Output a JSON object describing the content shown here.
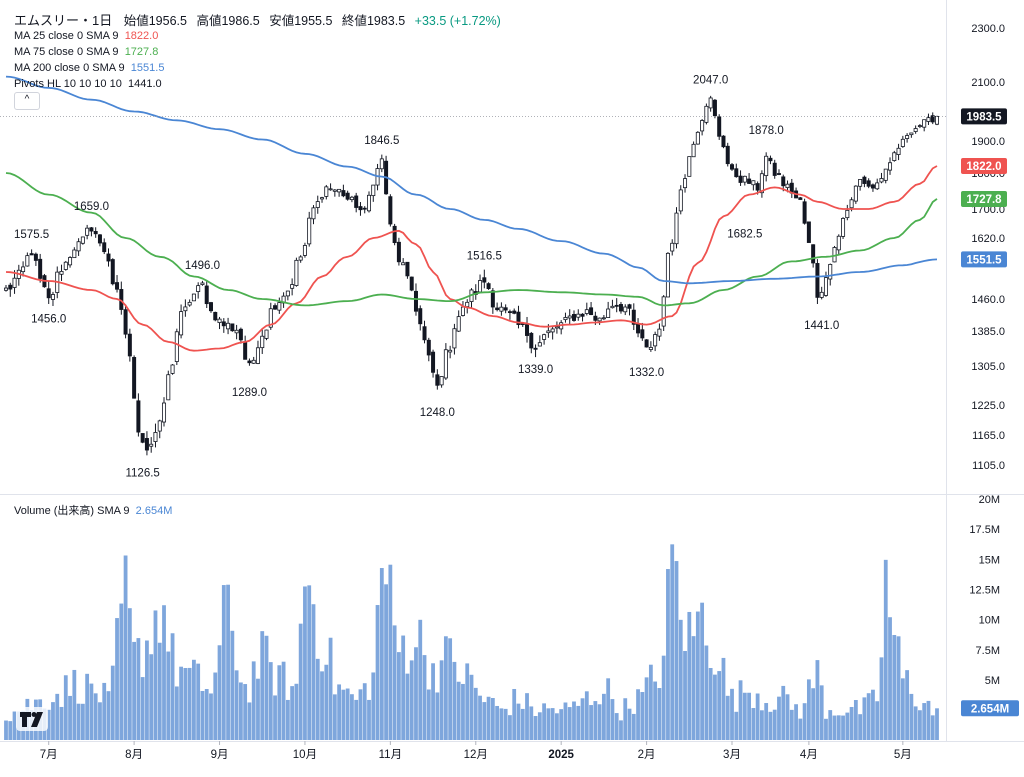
{
  "header": {
    "symbol": "エムスリー・1日",
    "open_label": "始値",
    "open": "1956.5",
    "high_label": "高値",
    "high": "1986.5",
    "low_label": "安値",
    "low": "1955.5",
    "close_label": "終値",
    "close": "1983.5",
    "change": "+33.5 (+1.72%)",
    "collapse_glyph": "^"
  },
  "indicators": [
    {
      "label": "MA 25 close 0 SMA 9",
      "value": "1822.0",
      "color": "#ef5350"
    },
    {
      "label": "MA 75 close 0 SMA 9",
      "value": "1727.8",
      "color": "#4caf50"
    },
    {
      "label": "MA 200 close 0 SMA 9",
      "value": "1551.5",
      "color": "#4a86d4"
    },
    {
      "label": "Pivots HL 10 10 10 10",
      "value": "1441.0",
      "color": "#131722"
    }
  ],
  "volume_legend": {
    "label": "Volume (出来高) SMA 9",
    "value": "2.654M",
    "color": "#4a86d4"
  },
  "chart_data": {
    "type": "candlestick",
    "price_axis": {
      "ticks": [
        2300,
        2100,
        1900,
        1800,
        1700,
        1620,
        1540,
        1460,
        1385,
        1305,
        1225,
        1165,
        1105
      ],
      "tick_labels": [
        "2300.0",
        "2100.0",
        "1900.0",
        "1800.0",
        "1700.0",
        "1620.0",
        "1540.0",
        "1460.0",
        "1385.0",
        "1305.0",
        "1225.0",
        "1165.0",
        "1105.0"
      ]
    },
    "volume_axis": {
      "ticks": [
        20,
        17.5,
        15,
        12.5,
        10,
        7.5,
        5
      ],
      "tick_labels": [
        "20M",
        "17.5M",
        "15M",
        "12.5M",
        "10M",
        "7.5M",
        "5M"
      ]
    },
    "time_axis": {
      "labels": [
        "7月",
        "8月",
        "9月",
        "10月",
        "11月",
        "12月",
        "2025",
        "2月",
        "3月",
        "4月",
        "5月"
      ],
      "label_index": [
        10,
        30,
        50,
        70,
        90,
        110,
        130,
        150,
        170,
        188,
        210
      ]
    },
    "price_tags": [
      {
        "value": 1983.5,
        "text": "1983.5",
        "bg": "#131722"
      },
      {
        "value": 1822.0,
        "text": "1822.0",
        "bg": "#ef5350"
      },
      {
        "value": 1727.8,
        "text": "1727.8",
        "bg": "#4caf50"
      },
      {
        "value": 1551.5,
        "text": "1551.5",
        "bg": "#4a86d4"
      }
    ],
    "volume_tag": {
      "value": 2.654,
      "text": "2.654M",
      "bg": "#4a86d4"
    },
    "pivot_labels": [
      {
        "text": "1575.5",
        "i": 6,
        "price": 1575.5,
        "pos": "above"
      },
      {
        "text": "1659.0",
        "i": 20,
        "price": 1659.0,
        "pos": "above"
      },
      {
        "text": "1456.0",
        "i": 10,
        "price": 1456.0,
        "pos": "below"
      },
      {
        "text": "1126.5",
        "i": 32,
        "price": 1126.5,
        "pos": "below"
      },
      {
        "text": "1496.0",
        "i": 46,
        "price": 1496.0,
        "pos": "above"
      },
      {
        "text": "1289.0",
        "i": 57,
        "price": 1289.0,
        "pos": "below"
      },
      {
        "text": "1846.5",
        "i": 88,
        "price": 1846.5,
        "pos": "above"
      },
      {
        "text": "1248.0",
        "i": 101,
        "price": 1248.0,
        "pos": "below"
      },
      {
        "text": "1516.5",
        "i": 112,
        "price": 1516.5,
        "pos": "above"
      },
      {
        "text": "1339.0",
        "i": 124,
        "price": 1339.0,
        "pos": "below"
      },
      {
        "text": "1332.0",
        "i": 150,
        "price": 1332.0,
        "pos": "below"
      },
      {
        "text": "2047.0",
        "i": 165,
        "price": 2047.0,
        "pos": "above"
      },
      {
        "text": "1878.0",
        "i": 178,
        "price": 1878.0,
        "pos": "above"
      },
      {
        "text": "1682.5",
        "i": 173,
        "price": 1682.5,
        "pos": "below"
      },
      {
        "text": "1441.0",
        "i": 191,
        "price": 1441.0,
        "pos": "below"
      }
    ],
    "anchors": [
      [
        0,
        1480
      ],
      [
        3,
        1510
      ],
      [
        6,
        1575
      ],
      [
        8,
        1500
      ],
      [
        10,
        1456
      ],
      [
        13,
        1530
      ],
      [
        17,
        1600
      ],
      [
        20,
        1650
      ],
      [
        23,
        1580
      ],
      [
        26,
        1470
      ],
      [
        28,
        1380
      ],
      [
        31,
        1180
      ],
      [
        33,
        1140
      ],
      [
        36,
        1180
      ],
      [
        38,
        1280
      ],
      [
        41,
        1420
      ],
      [
        44,
        1470
      ],
      [
        46,
        1490
      ],
      [
        48,
        1430
      ],
      [
        51,
        1400
      ],
      [
        54,
        1390
      ],
      [
        57,
        1300
      ],
      [
        60,
        1380
      ],
      [
        63,
        1450
      ],
      [
        66,
        1480
      ],
      [
        69,
        1560
      ],
      [
        72,
        1700
      ],
      [
        75,
        1760
      ],
      [
        78,
        1750
      ],
      [
        81,
        1720
      ],
      [
        84,
        1690
      ],
      [
        86,
        1780
      ],
      [
        88,
        1840
      ],
      [
        90,
        1650
      ],
      [
        92,
        1550
      ],
      [
        95,
        1480
      ],
      [
        97,
        1400
      ],
      [
        99,
        1320
      ],
      [
        101,
        1260
      ],
      [
        103,
        1330
      ],
      [
        106,
        1420
      ],
      [
        109,
        1470
      ],
      [
        112,
        1500
      ],
      [
        115,
        1440
      ],
      [
        118,
        1420
      ],
      [
        121,
        1390
      ],
      [
        124,
        1350
      ],
      [
        127,
        1380
      ],
      [
        130,
        1400
      ],
      [
        133,
        1420
      ],
      [
        136,
        1430
      ],
      [
        139,
        1410
      ],
      [
        142,
        1450
      ],
      [
        145,
        1440
      ],
      [
        148,
        1380
      ],
      [
        150,
        1340
      ],
      [
        153,
        1390
      ],
      [
        155,
        1560
      ],
      [
        158,
        1750
      ],
      [
        161,
        1900
      ],
      [
        163,
        1980
      ],
      [
        165,
        2040
      ],
      [
        167,
        1920
      ],
      [
        170,
        1800
      ],
      [
        173,
        1780
      ],
      [
        176,
        1760
      ],
      [
        178,
        1850
      ],
      [
        180,
        1800
      ],
      [
        183,
        1760
      ],
      [
        186,
        1720
      ],
      [
        188,
        1600
      ],
      [
        190,
        1470
      ],
      [
        192,
        1500
      ],
      [
        194,
        1600
      ],
      [
        197,
        1700
      ],
      [
        200,
        1780
      ],
      [
        203,
        1760
      ],
      [
        206,
        1800
      ],
      [
        209,
        1880
      ],
      [
        212,
        1940
      ],
      [
        215,
        1960
      ],
      [
        218,
        1983.5
      ]
    ],
    "ma_lines": [
      {
        "name": "MA 25",
        "color": "#ef5350",
        "points": [
          [
            0,
            1520
          ],
          [
            10,
            1500
          ],
          [
            20,
            1480
          ],
          [
            26,
            1460
          ],
          [
            32,
            1400
          ],
          [
            38,
            1360
          ],
          [
            44,
            1340
          ],
          [
            50,
            1345
          ],
          [
            56,
            1360
          ],
          [
            62,
            1400
          ],
          [
            68,
            1450
          ],
          [
            74,
            1510
          ],
          [
            80,
            1560
          ],
          [
            86,
            1620
          ],
          [
            92,
            1640
          ],
          [
            96,
            1600
          ],
          [
            100,
            1520
          ],
          [
            104,
            1460
          ],
          [
            108,
            1440
          ],
          [
            114,
            1420
          ],
          [
            120,
            1405
          ],
          [
            126,
            1395
          ],
          [
            132,
            1400
          ],
          [
            138,
            1405
          ],
          [
            144,
            1410
          ],
          [
            150,
            1400
          ],
          [
            156,
            1420
          ],
          [
            162,
            1540
          ],
          [
            168,
            1680
          ],
          [
            174,
            1740
          ],
          [
            180,
            1760
          ],
          [
            186,
            1740
          ],
          [
            190,
            1720
          ],
          [
            196,
            1700
          ],
          [
            202,
            1700
          ],
          [
            208,
            1720
          ],
          [
            214,
            1770
          ],
          [
            218,
            1822
          ]
        ]
      },
      {
        "name": "MA 75",
        "color": "#4caf50",
        "points": [
          [
            0,
            1800
          ],
          [
            10,
            1740
          ],
          [
            20,
            1690
          ],
          [
            28,
            1620
          ],
          [
            36,
            1560
          ],
          [
            44,
            1510
          ],
          [
            52,
            1480
          ],
          [
            60,
            1460
          ],
          [
            70,
            1445
          ],
          [
            80,
            1455
          ],
          [
            88,
            1470
          ],
          [
            96,
            1460
          ],
          [
            104,
            1455
          ],
          [
            112,
            1475
          ],
          [
            120,
            1480
          ],
          [
            130,
            1475
          ],
          [
            140,
            1470
          ],
          [
            148,
            1465
          ],
          [
            154,
            1445
          ],
          [
            160,
            1450
          ],
          [
            168,
            1480
          ],
          [
            176,
            1510
          ],
          [
            184,
            1545
          ],
          [
            192,
            1560
          ],
          [
            200,
            1580
          ],
          [
            208,
            1620
          ],
          [
            214,
            1670
          ],
          [
            218,
            1728
          ]
        ]
      },
      {
        "name": "MA 200",
        "color": "#4a86d4",
        "points": [
          [
            0,
            2120
          ],
          [
            10,
            2080
          ],
          [
            20,
            2040
          ],
          [
            30,
            2000
          ],
          [
            40,
            1970
          ],
          [
            50,
            1940
          ],
          [
            60,
            1905
          ],
          [
            70,
            1860
          ],
          [
            80,
            1820
          ],
          [
            88,
            1790
          ],
          [
            96,
            1740
          ],
          [
            104,
            1700
          ],
          [
            112,
            1670
          ],
          [
            120,
            1645
          ],
          [
            130,
            1610
          ],
          [
            140,
            1570
          ],
          [
            148,
            1530
          ],
          [
            154,
            1500
          ],
          [
            160,
            1495
          ],
          [
            170,
            1500
          ],
          [
            180,
            1505
          ],
          [
            190,
            1510
          ],
          [
            200,
            1520
          ],
          [
            210,
            1535
          ],
          [
            218,
            1551.5
          ]
        ]
      }
    ],
    "volume_peaks": [
      [
        0,
        2.5
      ],
      [
        6,
        3.5
      ],
      [
        12,
        4.5
      ],
      [
        16,
        5.5
      ],
      [
        20,
        5
      ],
      [
        24,
        4
      ],
      [
        28,
        14
      ],
      [
        30,
        8
      ],
      [
        34,
        10
      ],
      [
        36,
        13.5
      ],
      [
        40,
        7
      ],
      [
        44,
        6
      ],
      [
        48,
        5
      ],
      [
        52,
        12.5
      ],
      [
        56,
        5
      ],
      [
        60,
        8
      ],
      [
        64,
        6
      ],
      [
        68,
        5
      ],
      [
        70,
        16.5
      ],
      [
        74,
        10
      ],
      [
        78,
        5
      ],
      [
        82,
        4
      ],
      [
        86,
        6
      ],
      [
        88,
        17.5
      ],
      [
        92,
        9
      ],
      [
        96,
        10
      ],
      [
        100,
        7
      ],
      [
        104,
        8
      ],
      [
        108,
        6
      ],
      [
        112,
        4
      ],
      [
        116,
        3
      ],
      [
        120,
        4
      ],
      [
        124,
        3
      ],
      [
        128,
        3
      ],
      [
        132,
        3
      ],
      [
        136,
        4
      ],
      [
        140,
        5
      ],
      [
        144,
        3
      ],
      [
        148,
        4
      ],
      [
        152,
        6
      ],
      [
        154,
        8
      ],
      [
        156,
        18
      ],
      [
        158,
        12.5
      ],
      [
        160,
        10
      ],
      [
        163,
        12
      ],
      [
        166,
        9
      ],
      [
        170,
        4
      ],
      [
        174,
        5
      ],
      [
        178,
        4
      ],
      [
        182,
        4
      ],
      [
        186,
        3
      ],
      [
        190,
        6.5
      ],
      [
        192,
        3
      ],
      [
        196,
        3
      ],
      [
        200,
        3
      ],
      [
        204,
        4
      ],
      [
        206,
        15
      ],
      [
        208,
        10
      ],
      [
        210,
        6
      ],
      [
        214,
        4
      ],
      [
        218,
        2.654
      ]
    ]
  }
}
